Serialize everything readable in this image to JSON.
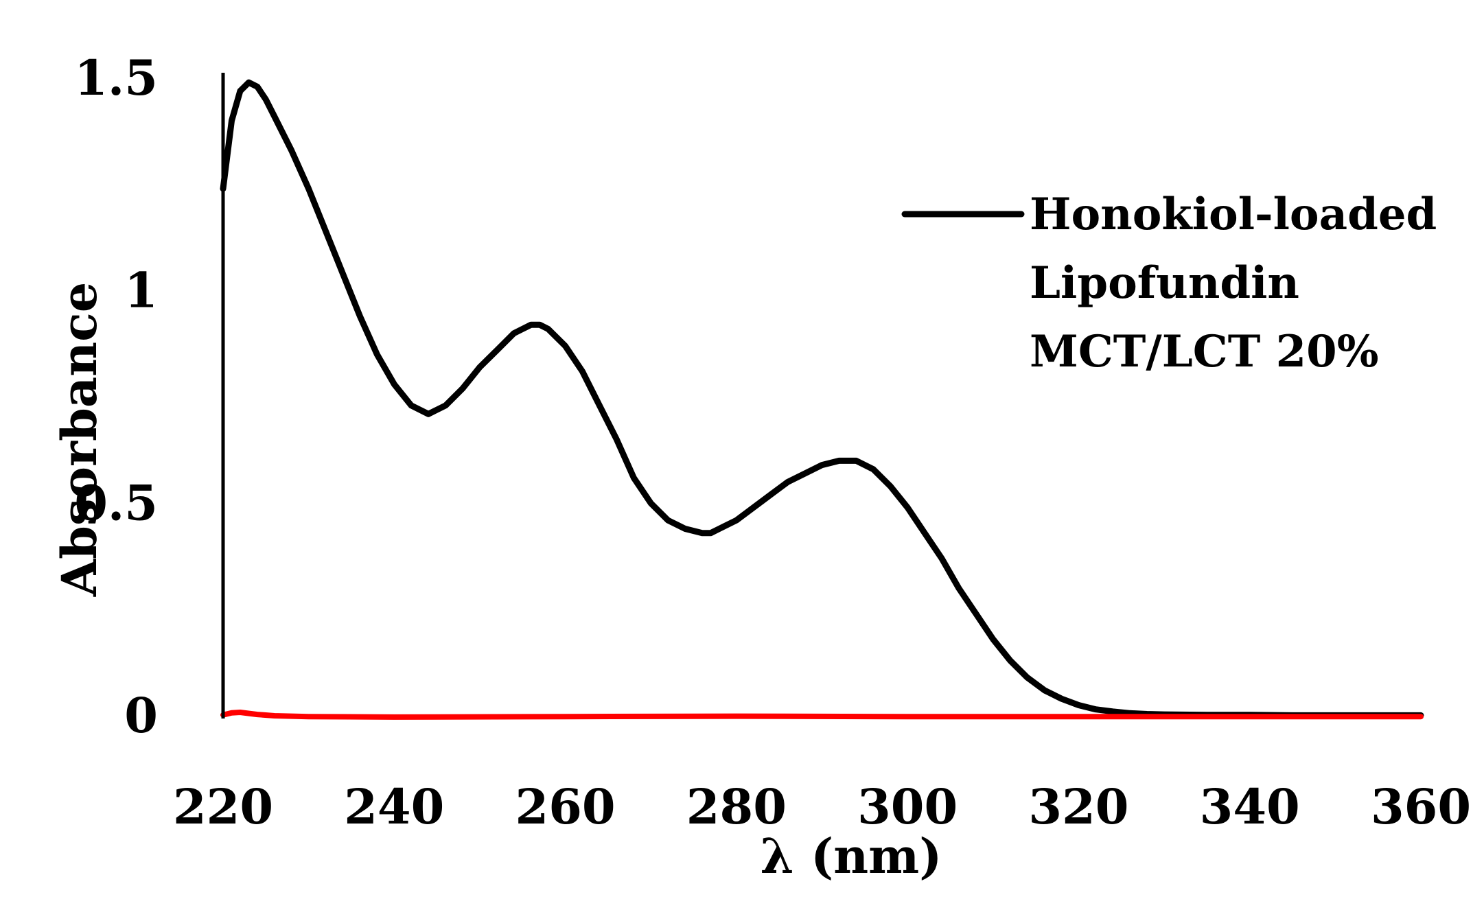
{
  "chart_data": {
    "type": "line",
    "xlabel": "λ (nm)",
    "ylabel": "Absorbance",
    "xlim": [
      220,
      360
    ],
    "ylim": [
      0,
      1.5
    ],
    "x_ticks": [
      "220",
      "240",
      "260",
      "280",
      "300",
      "320",
      "340",
      "360"
    ],
    "y_ticks": [
      "0",
      "0.5",
      "1",
      "1.5"
    ],
    "grid": false,
    "legend_position": "top-right",
    "series": [
      {
        "name": "Honokiol-loaded Lipofundin MCT/LCT 20%",
        "legend_lines": [
          "Honokiol-loaded",
          "Lipofundin",
          "MCT/LCT 20%"
        ],
        "color": "#000000",
        "x": [
          220,
          221,
          222,
          223,
          224,
          225,
          226,
          228,
          230,
          232,
          234,
          236,
          238,
          240,
          242,
          244,
          246,
          248,
          250,
          252,
          254,
          256,
          257,
          258,
          260,
          262,
          264,
          266,
          268,
          270,
          272,
          274,
          276,
          277,
          278,
          280,
          282,
          284,
          286,
          288,
          290,
          292,
          293,
          294,
          296,
          298,
          300,
          302,
          304,
          306,
          308,
          310,
          312,
          314,
          316,
          318,
          320,
          322,
          324,
          326,
          328,
          330,
          335,
          340,
          345,
          350,
          355,
          360
        ],
        "y": [
          1.24,
          1.4,
          1.47,
          1.49,
          1.48,
          1.45,
          1.41,
          1.33,
          1.24,
          1.14,
          1.04,
          0.94,
          0.85,
          0.78,
          0.73,
          0.71,
          0.73,
          0.77,
          0.82,
          0.86,
          0.9,
          0.92,
          0.92,
          0.91,
          0.87,
          0.81,
          0.73,
          0.65,
          0.56,
          0.5,
          0.46,
          0.44,
          0.43,
          0.43,
          0.44,
          0.46,
          0.49,
          0.52,
          0.55,
          0.57,
          0.59,
          0.6,
          0.6,
          0.6,
          0.58,
          0.54,
          0.49,
          0.43,
          0.37,
          0.3,
          0.24,
          0.18,
          0.13,
          0.09,
          0.06,
          0.04,
          0.025,
          0.015,
          0.01,
          0.006,
          0.004,
          0.003,
          0.002,
          0.002,
          0.001,
          0.001,
          0.001,
          0.001
        ]
      },
      {
        "name": "",
        "color": "#ff0000",
        "x": [
          220,
          221,
          222,
          224,
          226,
          230,
          240,
          260,
          280,
          300,
          320,
          340,
          360
        ],
        "y": [
          0.002,
          0.007,
          0.008,
          0.003,
          0.0,
          -0.002,
          -0.003,
          -0.002,
          -0.001,
          -0.002,
          -0.002,
          -0.002,
          -0.002
        ]
      }
    ]
  }
}
